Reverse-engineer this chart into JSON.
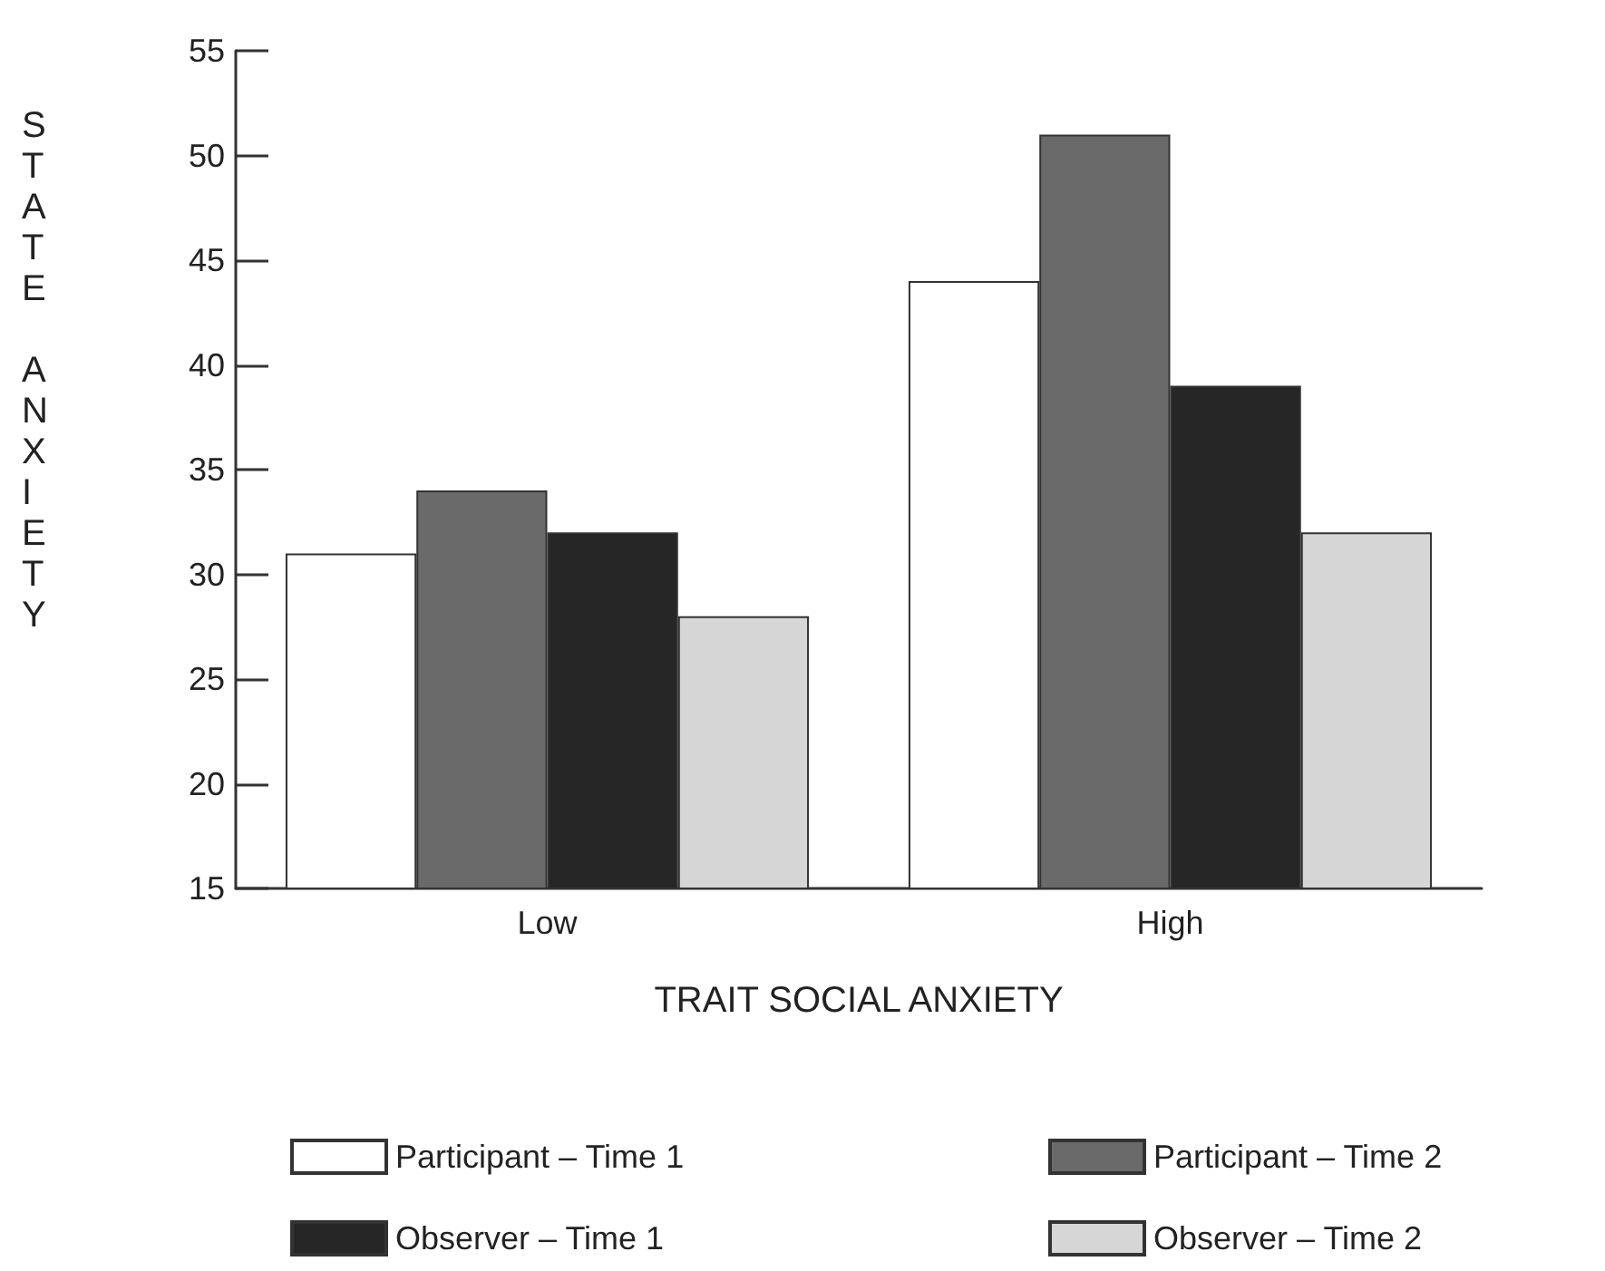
{
  "chart_data": {
    "type": "bar",
    "xlabel": "TRAIT SOCIAL ANXIETY",
    "ylabel": "STATE ANXIETY",
    "categories": [
      "Low",
      "High"
    ],
    "series": [
      {
        "name": "Participant – Time 1",
        "color": "#ffffff",
        "values": [
          31,
          44
        ]
      },
      {
        "name": "Participant – Time 2",
        "color": "#6a6a6a",
        "values": [
          34,
          51
        ]
      },
      {
        "name": "Observer – Time 1",
        "color": "#262626",
        "values": [
          32,
          39
        ]
      },
      {
        "name": "Observer – Time 2",
        "color": "#d6d6d6",
        "values": [
          28,
          32
        ]
      }
    ],
    "ylim": [
      15,
      55
    ],
    "yticks": [
      15,
      20,
      25,
      30,
      35,
      40,
      45,
      50,
      55
    ],
    "grid": false,
    "legend": "bottom"
  }
}
